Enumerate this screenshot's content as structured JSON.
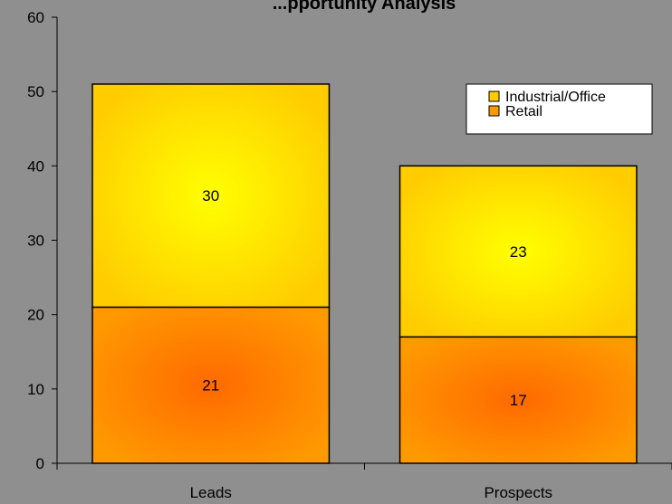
{
  "chart_data": {
    "type": "bar",
    "stacked": true,
    "title": "...pportunity Analysis",
    "categories": [
      "Leads",
      "Prospects"
    ],
    "series": [
      {
        "name": "Retail",
        "values": [
          21,
          17
        ],
        "color": "#ff9900",
        "center_color": "#ff6a00"
      },
      {
        "name": "Industrial/Office",
        "values": [
          30,
          23
        ],
        "color": "#ffcc00",
        "center_color": "#ffff00"
      }
    ],
    "ylim": [
      0,
      60
    ],
    "yticks": [
      0,
      10,
      20,
      30,
      40,
      50,
      60
    ],
    "grid": false,
    "legend": {
      "placement": "top-right",
      "entries": [
        "Industrial/Office",
        "Retail"
      ]
    },
    "background_color": "#8f8f8f"
  }
}
